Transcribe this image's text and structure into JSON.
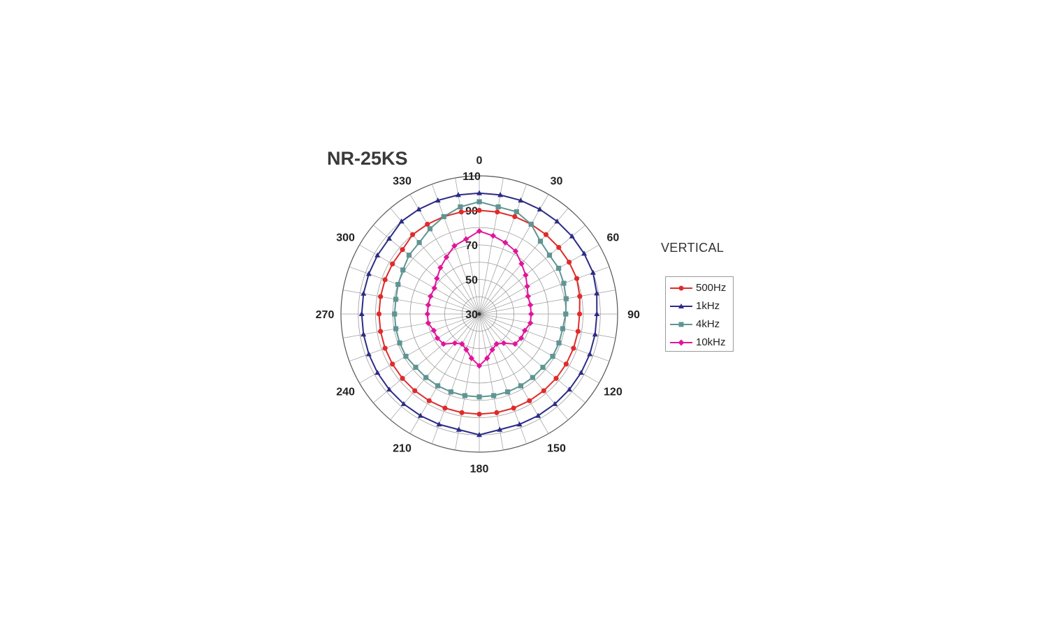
{
  "chart_data": {
    "type": "polar-line",
    "title": "NR-25KS",
    "subtitle": "VERTICAL",
    "angle_unit": "degrees",
    "angle_ticks": [
      0,
      30,
      60,
      90,
      120,
      150,
      180,
      210,
      240,
      270,
      300,
      330
    ],
    "radial_range": [
      30,
      110
    ],
    "radial_ticks": [
      30,
      50,
      70,
      90,
      110
    ],
    "grid": true,
    "legend_position": "right",
    "angles": [
      0,
      10,
      20,
      30,
      40,
      50,
      60,
      70,
      80,
      90,
      100,
      110,
      120,
      130,
      140,
      150,
      160,
      170,
      180,
      190,
      200,
      210,
      220,
      230,
      240,
      250,
      260,
      270,
      280,
      290,
      300,
      310,
      320,
      330,
      340,
      350
    ],
    "series": [
      {
        "name": "500Hz",
        "color": "#e02b2b",
        "marker": "circle",
        "values": [
          90,
          90,
          90,
          90,
          90,
          90,
          90,
          90,
          89,
          88,
          88,
          88,
          88,
          88,
          88,
          88,
          88,
          88,
          88,
          88,
          88,
          88,
          88,
          88,
          88,
          88,
          88,
          88,
          88,
          88,
          88,
          88,
          90,
          90,
          90,
          90
        ]
      },
      {
        "name": "1kHz",
        "color": "#2c2c86",
        "marker": "triangle",
        "values": [
          100,
          100,
          100,
          100,
          100,
          100,
          100,
          100,
          99,
          98,
          98,
          98,
          98,
          98,
          98,
          98,
          98,
          98,
          100,
          98,
          98,
          98,
          98,
          98,
          98,
          98,
          98,
          98,
          98,
          98,
          98,
          98,
          100,
          100,
          100,
          100
        ]
      },
      {
        "name": "4kHz",
        "color": "#5f9593",
        "marker": "square",
        "values": [
          95,
          93,
          93,
          90,
          85,
          83,
          83,
          82,
          81,
          80,
          79,
          79,
          79,
          78,
          78,
          78,
          78,
          78,
          78,
          78,
          78,
          78,
          78,
          78,
          79,
          79,
          79,
          79,
          79,
          80,
          81,
          83,
          84,
          87,
          90,
          93
        ]
      },
      {
        "name": "10kHz",
        "color": "#e0169a",
        "marker": "diamond",
        "values": [
          78,
          76,
          74,
          72,
          68,
          65,
          62,
          60,
          60,
          60,
          60,
          58,
          58,
          57,
          52,
          50,
          52,
          56,
          60,
          56,
          52,
          50,
          52,
          57,
          58,
          58,
          60,
          60,
          60,
          60,
          60,
          62,
          65,
          68,
          72,
          74
        ]
      }
    ]
  }
}
